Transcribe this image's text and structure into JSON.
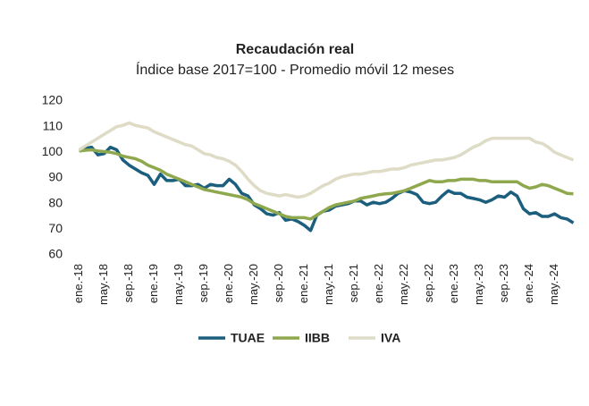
{
  "chart_data": {
    "type": "line",
    "title": "Recaudación real",
    "subtitle": "Índice base 2017=100 - Promedio móvil 12 meses",
    "categories": [
      "ene.-18",
      null,
      null,
      null,
      "may.-18",
      null,
      null,
      null,
      "sep.-18",
      null,
      null,
      null,
      "ene.-19",
      null,
      null,
      null,
      "may.-19",
      null,
      null,
      null,
      "sep.-19",
      null,
      null,
      null,
      "ene.-20",
      null,
      null,
      null,
      "may.-20",
      null,
      null,
      null,
      "sep.-20",
      null,
      null,
      null,
      "ene.-21",
      null,
      null,
      null,
      "may.-21",
      null,
      null,
      null,
      "sep.-21",
      null,
      null,
      null,
      "ene.-22",
      null,
      null,
      null,
      "may.-22",
      null,
      null,
      null,
      "sep.-22",
      null,
      null,
      null,
      "ene.-23",
      null,
      null,
      null,
      "may.-23",
      null,
      null,
      null,
      "sep.-23",
      null,
      null,
      null,
      "ene.-24",
      null,
      null,
      null,
      "may.-24",
      null,
      null,
      null
    ],
    "series": [
      {
        "name": "TUAE",
        "color": "#1b5e7e",
        "values": [
          101,
          101.5,
          102,
          99,
          99.5,
          102,
          101,
          97,
          95,
          93.5,
          92,
          91,
          87.5,
          91.5,
          89,
          89,
          89.5,
          87,
          87,
          87.5,
          86,
          87.5,
          87,
          87,
          89.5,
          87.5,
          84,
          83,
          79.5,
          78,
          76,
          75.5,
          76.5,
          73.5,
          74,
          73,
          71.5,
          69.5,
          75.5,
          77,
          77.5,
          79,
          79.5,
          80,
          81,
          81,
          79.5,
          80.5,
          80,
          80.5,
          82,
          84,
          85,
          84.5,
          83.5,
          80.5,
          80,
          80.5,
          83,
          85,
          84,
          84,
          82.5,
          82,
          81.5,
          80.5,
          81.5,
          83,
          82.5,
          84.5,
          83,
          78,
          76,
          76.5,
          75,
          75,
          76,
          74.5,
          74,
          72.5
        ]
      },
      {
        "name": "IIBB",
        "color": "#8fa84e",
        "values": [
          100.5,
          100.8,
          101,
          100.5,
          100.3,
          100,
          99.5,
          98.5,
          98,
          97.5,
          96.5,
          95,
          94,
          93,
          91.5,
          90.5,
          89.5,
          88.5,
          87.5,
          86.5,
          85.5,
          85,
          84.5,
          84,
          83.5,
          83,
          82.5,
          81.5,
          80,
          79,
          78,
          77,
          76,
          75,
          74.5,
          74.5,
          74.5,
          74,
          75.5,
          77,
          78.5,
          79.5,
          80,
          80.5,
          81,
          82,
          82.5,
          83,
          83.5,
          83.8,
          84,
          84.5,
          85,
          86,
          87,
          88,
          89,
          88.5,
          88.5,
          89,
          89,
          89.5,
          89.5,
          89.5,
          89,
          89,
          88.5,
          88.5,
          88.5,
          88.5,
          88.5,
          87,
          86,
          86.5,
          87.5,
          87,
          86,
          85,
          84,
          83.8
        ]
      },
      {
        "name": "IVA",
        "color": "#dedbc6",
        "values": [
          101,
          102.5,
          104,
          105.5,
          107,
          108.5,
          110,
          110.5,
          111.5,
          110.5,
          110,
          109.5,
          108,
          107,
          106,
          105,
          104,
          103,
          102.5,
          101,
          99.5,
          99,
          98,
          97.5,
          96.5,
          95,
          92.5,
          89.5,
          87,
          85,
          84,
          83.5,
          83,
          83.5,
          83,
          82.5,
          83,
          84,
          85.5,
          87,
          88,
          89.5,
          90.5,
          91,
          91.5,
          91.5,
          92,
          92.5,
          92.5,
          93,
          93.5,
          93.5,
          94,
          95,
          95.5,
          96,
          96.5,
          97,
          97,
          97.5,
          98,
          99,
          100.5,
          102,
          103,
          104.5,
          105.5,
          105.5,
          105.5,
          105.5,
          105.5,
          105.5,
          105.5,
          104,
          103.5,
          102,
          100,
          99,
          98,
          97
        ]
      }
    ],
    "ylim": [
      60,
      120
    ],
    "yticks": [
      60,
      70,
      80,
      90,
      100,
      110,
      120
    ],
    "grid": false
  }
}
